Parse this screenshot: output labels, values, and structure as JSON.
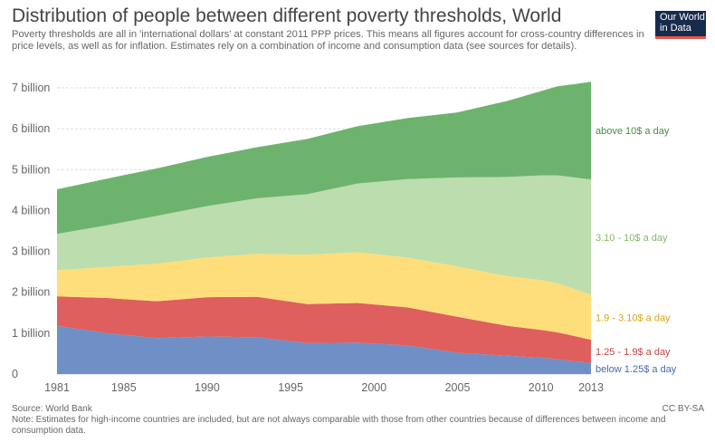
{
  "header": {
    "title": "Distribution of people between different poverty thresholds, World",
    "subtitle": "Poverty thresholds are all in 'international dollars' at constant 2011 PPP prices. This means all figures account for cross-country differences in price levels, as well as for inflation. Estimates rely on a combination of income and consumption data (see sources for details).",
    "logo": "Our World in Data"
  },
  "footer": {
    "source": "Source: World Bank",
    "license": "CC BY-SA",
    "note": "Note: Estimates for high-income countries are included, but are not always comparable with those from other countries because of differences between income and consumption data."
  },
  "chart_data": {
    "type": "area",
    "stacked": true,
    "x": [
      1981,
      1984,
      1987,
      1990,
      1993,
      1996,
      1999,
      2002,
      2005,
      2008,
      2010,
      2011,
      2012,
      2013
    ],
    "series": [
      {
        "name": "below 1.25$ a day",
        "color": "#6f8fc6",
        "values": [
          1.18,
          1.0,
          0.88,
          0.92,
          0.9,
          0.76,
          0.77,
          0.7,
          0.52,
          0.45,
          0.4,
          0.36,
          0.31,
          0.27
        ]
      },
      {
        "name": "1.25 - 1.9$ a day",
        "color": "#de5f5d",
        "values": [
          0.72,
          0.86,
          0.9,
          0.96,
          0.99,
          0.95,
          0.97,
          0.93,
          0.88,
          0.73,
          0.68,
          0.66,
          0.62,
          0.57
        ]
      },
      {
        "name": "1.9 - 3.10$ a day",
        "color": "#fede7a",
        "values": [
          0.64,
          0.76,
          0.92,
          0.97,
          1.05,
          1.21,
          1.24,
          1.22,
          1.23,
          1.22,
          1.22,
          1.2,
          1.15,
          1.1
        ]
      },
      {
        "name": "3.10 - 10$ a day",
        "color": "#bcddad",
        "values": [
          0.89,
          1.02,
          1.17,
          1.26,
          1.36,
          1.48,
          1.68,
          1.92,
          2.18,
          2.42,
          2.56,
          2.64,
          2.73,
          2.82
        ]
      },
      {
        "name": "above 10$ a day",
        "color": "#6db36e",
        "values": [
          1.09,
          1.14,
          1.16,
          1.2,
          1.25,
          1.35,
          1.4,
          1.49,
          1.59,
          1.86,
          2.06,
          2.18,
          2.28,
          2.39
        ]
      }
    ],
    "ylim": [
      0,
      7000000000
    ],
    "yticks": [
      0,
      1,
      2,
      3,
      4,
      5,
      6,
      7
    ],
    "ytick_labels": [
      "0",
      "1 billion",
      "2 billion",
      "3 billion",
      "4 billion",
      "5 billion",
      "6 billion",
      "7 billion"
    ],
    "xticks": [
      1981,
      1985,
      1990,
      1995,
      2000,
      2005,
      2010,
      2013
    ],
    "xtick_labels": [
      "1981",
      "1985",
      "1990",
      "1995",
      "2000",
      "2005",
      "2010",
      "2013"
    ],
    "xlim": [
      1981,
      2013
    ],
    "grid": true,
    "legend": "right-inline",
    "units_note": "values in billions of people"
  }
}
